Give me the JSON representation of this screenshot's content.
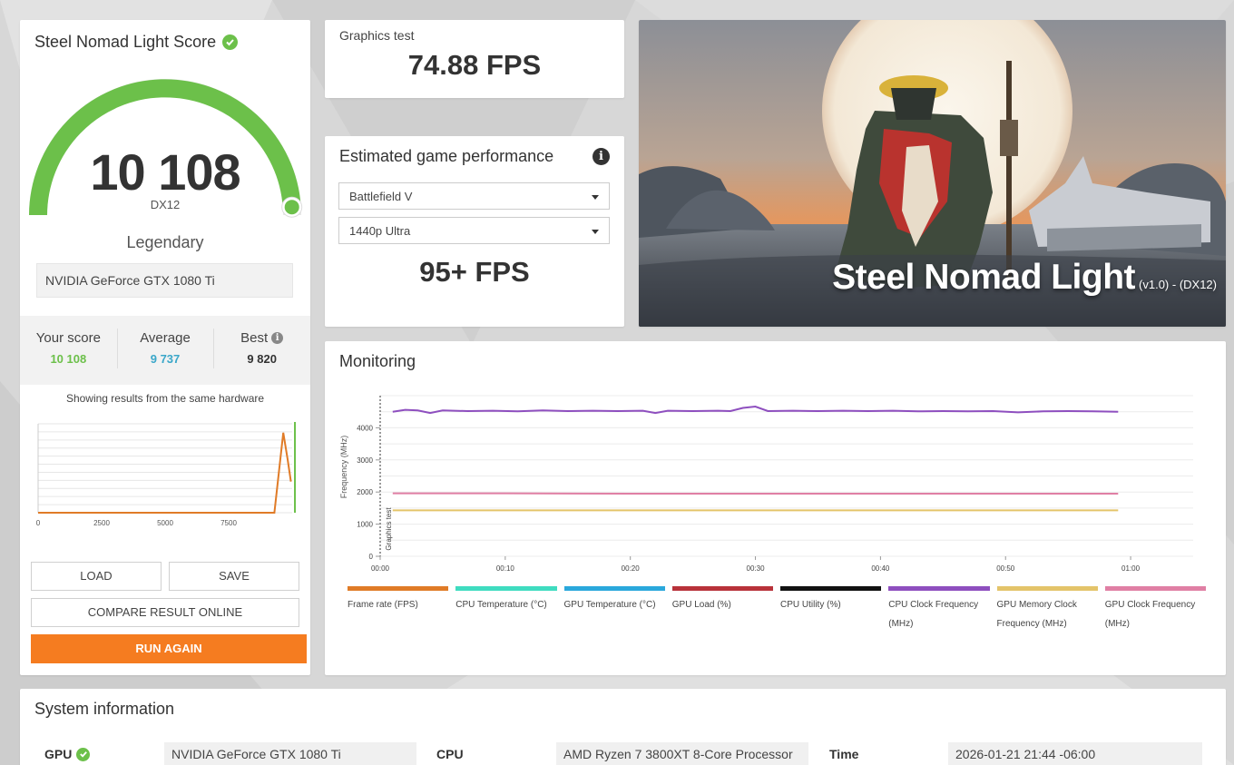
{
  "score_card": {
    "title": "Steel Nomad Light Score",
    "score": "10 108",
    "score_fraction": 0.98,
    "api": "DX12",
    "rating": "Legendary",
    "hardware": "NVIDIA GeForce GTX 1080 Ti",
    "your_score_label": "Your score",
    "your_score": "10 108",
    "average_label": "Average",
    "average": "9 737",
    "best_label": "Best",
    "best": "9 820",
    "showing_text": "Showing results from the same hardware",
    "load_label": "LOAD",
    "save_label": "SAVE",
    "compare_label": "COMPARE RESULT ONLINE",
    "run_again_label": "RUN AGAIN",
    "colors": {
      "your_score": "#6cc04a",
      "average": "#3aa7c9",
      "accent": "#f57c20",
      "gauge": "#6cc04a"
    }
  },
  "graphics_test": {
    "label": "Graphics test",
    "value": "74.88 FPS"
  },
  "estimated": {
    "title": "Estimated game performance",
    "game": "Battlefield V",
    "preset": "1440p Ultra",
    "fps": "95+ FPS"
  },
  "banner": {
    "name": "Steel Nomad Light",
    "version": "(v1.0) - (DX12)"
  },
  "monitoring": {
    "title": "Monitoring",
    "legend": [
      {
        "label": "Frame rate (FPS)",
        "color": "#e07b27"
      },
      {
        "label": "CPU Temperature (°C)",
        "color": "#3fdcc0"
      },
      {
        "label": "GPU Temperature (°C)",
        "color": "#2aa8dc"
      },
      {
        "label": "GPU Load (%)",
        "color": "#b8323a"
      },
      {
        "label": "CPU Utility (%)",
        "color": "#111111"
      },
      {
        "label": "CPU Clock Frequency (MHz)",
        "color": "#8e4fbf"
      },
      {
        "label": "GPU Memory Clock Frequency (MHz)",
        "color": "#e4c46a"
      },
      {
        "label": "GPU Clock Frequency (MHz)",
        "color": "#e07fa4"
      }
    ]
  },
  "chart_data": [
    {
      "type": "line",
      "title": "Monitoring",
      "xlabel": "",
      "ylabel": "Frequency (MHz)",
      "annotation": "Graphics test",
      "x_ticks": [
        "00:00",
        "00:10",
        "00:20",
        "00:30",
        "00:40",
        "00:50",
        "01:00"
      ],
      "y_ticks": [
        "0",
        "1000",
        "2000",
        "3000",
        "4000"
      ],
      "xlim": [
        0,
        65
      ],
      "ylim": [
        0,
        5000
      ],
      "grid": true,
      "series": [
        {
          "name": "CPU Clock Frequency (MHz)",
          "color": "#8e4fbf",
          "x": [
            1,
            2,
            3,
            4,
            5,
            7,
            9,
            11,
            13,
            15,
            17,
            19,
            21,
            22,
            23,
            25,
            27,
            28,
            29,
            30,
            31,
            33,
            35,
            37,
            39,
            41,
            43,
            45,
            47,
            49,
            51,
            53,
            55,
            57,
            59
          ],
          "values": [
            4500,
            4560,
            4540,
            4460,
            4540,
            4520,
            4530,
            4510,
            4540,
            4520,
            4530,
            4520,
            4530,
            4460,
            4530,
            4520,
            4530,
            4520,
            4620,
            4660,
            4520,
            4530,
            4520,
            4530,
            4520,
            4530,
            4510,
            4520,
            4510,
            4520,
            4480,
            4510,
            4520,
            4510,
            4500
          ]
        },
        {
          "name": "GPU Clock Frequency (MHz)",
          "color": "#e07fa4",
          "x": [
            1,
            10,
            20,
            30,
            40,
            50,
            59
          ],
          "values": [
            1960,
            1960,
            1950,
            1950,
            1950,
            1950,
            1950
          ]
        },
        {
          "name": "GPU Memory Clock Frequency (MHz)",
          "color": "#e4c46a",
          "x": [
            1,
            10,
            20,
            30,
            40,
            50,
            59
          ],
          "values": [
            1430,
            1430,
            1430,
            1430,
            1430,
            1430,
            1430
          ]
        }
      ]
    },
    {
      "type": "line",
      "title": "Showing results from the same hardware",
      "x_ticks": [
        "0",
        "2500",
        "5000",
        "7500"
      ],
      "xlim": [
        0,
        10000
      ],
      "grid": true,
      "series": [
        {
          "name": "",
          "color": "#e07b27",
          "x": [
            0,
            9300,
            9650,
            9820,
            9950
          ],
          "values": [
            0,
            0,
            0.9,
            0.6,
            0.35
          ]
        }
      ],
      "markers": [
        {
          "x": 10108,
          "color": "#6cc04a"
        }
      ]
    }
  ],
  "system_info": {
    "title": "System information",
    "gpu_label": "GPU",
    "gpu_value": "NVIDIA GeForce GTX 1080 Ti",
    "cpu_label": "CPU",
    "cpu_value": "AMD Ryzen 7 3800XT 8-Core Processor",
    "time_label": "Time",
    "time_value": "2026-01-21 21:44 -06:00"
  }
}
